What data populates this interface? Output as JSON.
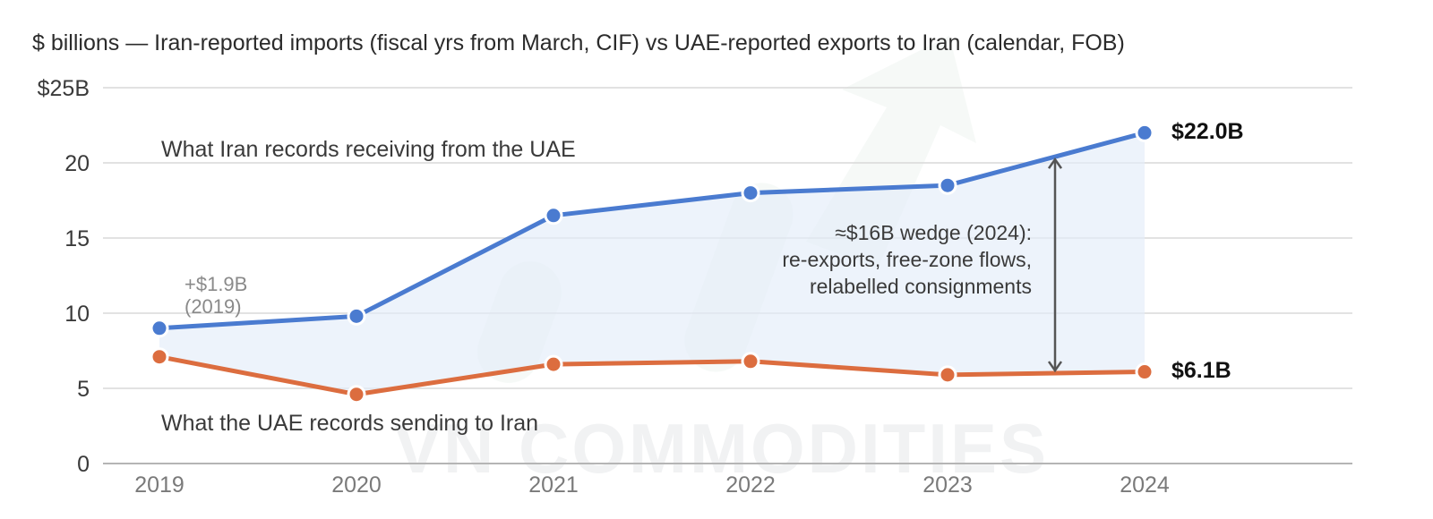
{
  "subtitle": "$ billions — Iran-reported imports (fiscal yrs from March, CIF) vs UAE-reported exports to Iran (calendar, FOB)",
  "watermark": "VN COMMODITIES",
  "colors": {
    "iran_series": "#4a7bd0",
    "uae_series": "#dc6d3f",
    "wedge_fill": "#e3ecf9",
    "gridline": "#d9d9d9"
  },
  "chart_data": {
    "type": "line",
    "x": [
      "2019",
      "2020",
      "2021",
      "2022",
      "2023",
      "2024"
    ],
    "ylim": [
      0,
      25
    ],
    "yticks": [
      {
        "value": 0,
        "label": "0"
      },
      {
        "value": 5,
        "label": "5"
      },
      {
        "value": 10,
        "label": "10"
      },
      {
        "value": 15,
        "label": "15"
      },
      {
        "value": 20,
        "label": "20"
      },
      {
        "value": 25,
        "label": "$25B"
      }
    ],
    "grid": true,
    "series": [
      {
        "name": "What Iran records receiving from the UAE",
        "values": [
          9.0,
          9.8,
          16.5,
          18.0,
          18.5,
          22.0
        ],
        "end_label": "$22.0B"
      },
      {
        "name": "What the UAE records sending to Iran",
        "values": [
          7.1,
          4.6,
          6.6,
          6.8,
          5.9,
          6.1
        ],
        "end_label": "$6.1B"
      }
    ],
    "annotations": {
      "gap_2019": [
        "+$1.9B",
        "(2019)"
      ],
      "wedge_2024": [
        "≈$16B wedge (2024):",
        "re-exports, free-zone flows,",
        "relabelled consignments"
      ]
    }
  }
}
